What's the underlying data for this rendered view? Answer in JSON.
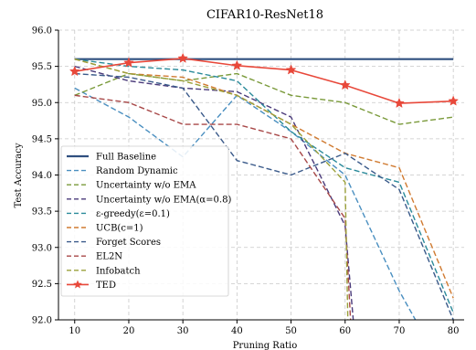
{
  "chart_data": {
    "type": "line",
    "title": "CIFAR10-ResNet18",
    "xlabel": "Pruning Ratio",
    "ylabel": "Test Accuracy",
    "xlim": [
      7,
      82
    ],
    "ylim": [
      92.0,
      96.0
    ],
    "xticks": [
      "10",
      "20",
      "30",
      "40",
      "50",
      "60",
      "70",
      "80"
    ],
    "yticks": [
      "92.0",
      "92.5",
      "93.0",
      "93.5",
      "94.0",
      "94.5",
      "95.0",
      "95.5",
      "96.0"
    ],
    "grid": true,
    "legend_position": "lower-left",
    "series": [
      {
        "name": "Full Baseline",
        "color": "#2f4f7f",
        "style": "solid",
        "width": 2.2,
        "marker": "none",
        "x": [
          10,
          80
        ],
        "y": [
          95.6,
          95.6
        ]
      },
      {
        "name": "Random Dynamic",
        "color": "#4a8fc0",
        "style": "dashed",
        "width": 1.4,
        "marker": "none",
        "x": [
          10,
          20,
          30,
          40,
          50,
          60,
          70,
          73
        ],
        "y": [
          95.2,
          94.8,
          94.25,
          95.1,
          94.6,
          94.0,
          92.4,
          92.0
        ]
      },
      {
        "name": "Uncertainty w/o EMA",
        "color": "#7a9a3a",
        "style": "dashed",
        "width": 1.4,
        "marker": "none",
        "x": [
          10,
          20,
          30,
          40,
          50,
          60,
          70,
          80
        ],
        "y": [
          95.1,
          95.4,
          95.3,
          95.4,
          95.1,
          95.0,
          94.7,
          94.8
        ]
      },
      {
        "name": "Uncertainty w/o EMA(α=0.8)",
        "color": "#4a3a7a",
        "style": "dashed",
        "width": 1.4,
        "marker": "none",
        "x": [
          10,
          20,
          30,
          40,
          50,
          60,
          61.5
        ],
        "y": [
          95.5,
          95.3,
          95.2,
          95.15,
          94.8,
          93.3,
          92.0
        ]
      },
      {
        "name": "ε-greedy(ε=0.1)",
        "color": "#2a8a9a",
        "style": "dashed",
        "width": 1.4,
        "marker": "none",
        "x": [
          10,
          20,
          30,
          40,
          50,
          60,
          70,
          80
        ],
        "y": [
          95.6,
          95.5,
          95.45,
          95.3,
          94.6,
          94.1,
          93.9,
          92.1
        ]
      },
      {
        "name": "UCB(c=1)",
        "color": "#d07a30",
        "style": "dashed",
        "width": 1.4,
        "marker": "none",
        "x": [
          10,
          20,
          30,
          40,
          50,
          60,
          70,
          80
        ],
        "y": [
          95.6,
          95.4,
          95.35,
          95.1,
          94.7,
          94.3,
          94.1,
          92.3
        ]
      },
      {
        "name": "Forget Scores",
        "color": "#3a5a8a",
        "style": "dashed",
        "width": 1.4,
        "marker": "none",
        "x": [
          10,
          20,
          30,
          40,
          50,
          60,
          70,
          80
        ],
        "y": [
          95.4,
          95.35,
          95.2,
          94.2,
          94.0,
          94.3,
          93.8,
          92.0
        ]
      },
      {
        "name": "EL2N",
        "color": "#a84848",
        "style": "dashed",
        "width": 1.4,
        "marker": "none",
        "x": [
          10,
          20,
          30,
          40,
          50,
          60,
          61
        ],
        "y": [
          95.1,
          95.0,
          94.7,
          94.7,
          94.5,
          93.4,
          92.0
        ]
      },
      {
        "name": "Infobatch",
        "color": "#9aa03a",
        "style": "dashed",
        "width": 1.4,
        "marker": "none",
        "x": [
          10,
          20,
          30,
          40,
          50,
          60,
          60.5
        ],
        "y": [
          95.6,
          95.4,
          95.3,
          95.1,
          94.7,
          93.9,
          92.0
        ]
      },
      {
        "name": "TED",
        "color": "#e8483a",
        "style": "solid",
        "width": 1.6,
        "marker": "star",
        "x": [
          10,
          20,
          30,
          40,
          50,
          60,
          70,
          80
        ],
        "y": [
          95.43,
          95.55,
          95.61,
          95.51,
          95.45,
          95.24,
          94.99,
          95.02
        ]
      }
    ]
  }
}
